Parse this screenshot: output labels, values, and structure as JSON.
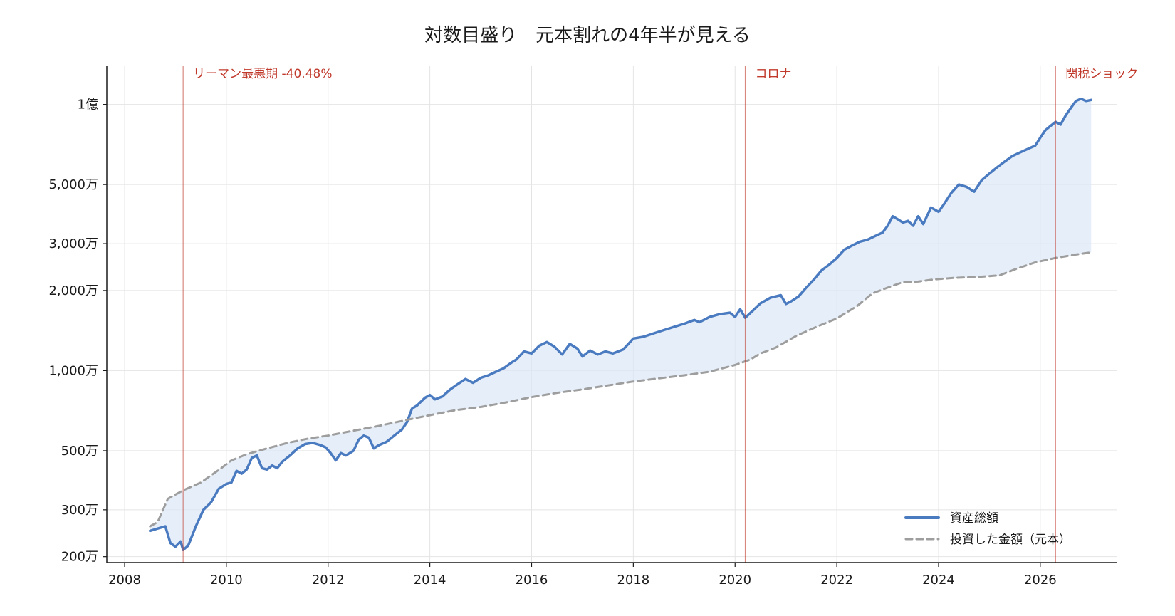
{
  "colors": {
    "asset": "#4a7abf",
    "invested": "#9e9e9e",
    "fill": "#dce8f6",
    "event": "#c0392b",
    "grid": "#e4e4e4",
    "axis": "#1a1a1a"
  },
  "chart_data": {
    "type": "line",
    "title": "対数目盛り　元本割れの4年半が見える",
    "xlabel": "",
    "ylabel": "",
    "y_scale": "log",
    "xlim": [
      2007.65,
      2027.5
    ],
    "ylim": [
      1900000,
      140000000
    ],
    "grid": true,
    "legend_position": "lower-right",
    "x_ticks": [
      {
        "value": 2008,
        "label": "2008"
      },
      {
        "value": 2010,
        "label": "2010"
      },
      {
        "value": 2012,
        "label": "2012"
      },
      {
        "value": 2014,
        "label": "2014"
      },
      {
        "value": 2016,
        "label": "2016"
      },
      {
        "value": 2018,
        "label": "2018"
      },
      {
        "value": 2020,
        "label": "2020"
      },
      {
        "value": 2022,
        "label": "2022"
      },
      {
        "value": 2024,
        "label": "2024"
      },
      {
        "value": 2026,
        "label": "2026"
      }
    ],
    "y_ticks": [
      {
        "value": 2000000,
        "label": "200万"
      },
      {
        "value": 3000000,
        "label": "300万"
      },
      {
        "value": 5000000,
        "label": "500万"
      },
      {
        "value": 10000000,
        "label": "1,000万"
      },
      {
        "value": 20000000,
        "label": "2,000万"
      },
      {
        "value": 30000000,
        "label": "3,000万"
      },
      {
        "value": 50000000,
        "label": "5,000万"
      },
      {
        "value": 100000000,
        "label": "1億"
      }
    ],
    "events": [
      {
        "x": 2009.15,
        "label": "リーマン最悪期 -40.48%"
      },
      {
        "x": 2020.2,
        "label": "コロナ"
      },
      {
        "x": 2026.3,
        "label": "関税ショック"
      }
    ],
    "series": [
      {
        "name": "資産総額",
        "style": "solid",
        "points": [
          [
            2008.5,
            2500000
          ],
          [
            2008.65,
            2550000
          ],
          [
            2008.8,
            2600000
          ],
          [
            2008.9,
            2250000
          ],
          [
            2009.0,
            2180000
          ],
          [
            2009.1,
            2280000
          ],
          [
            2009.15,
            2120000
          ],
          [
            2009.25,
            2200000
          ],
          [
            2009.4,
            2600000
          ],
          [
            2009.55,
            3000000
          ],
          [
            2009.7,
            3200000
          ],
          [
            2009.85,
            3600000
          ],
          [
            2010.0,
            3750000
          ],
          [
            2010.1,
            3800000
          ],
          [
            2010.2,
            4200000
          ],
          [
            2010.3,
            4100000
          ],
          [
            2010.4,
            4250000
          ],
          [
            2010.5,
            4700000
          ],
          [
            2010.6,
            4800000
          ],
          [
            2010.7,
            4300000
          ],
          [
            2010.8,
            4250000
          ],
          [
            2010.9,
            4400000
          ],
          [
            2011.0,
            4300000
          ],
          [
            2011.1,
            4550000
          ],
          [
            2011.25,
            4800000
          ],
          [
            2011.4,
            5100000
          ],
          [
            2011.55,
            5300000
          ],
          [
            2011.7,
            5350000
          ],
          [
            2011.85,
            5250000
          ],
          [
            2011.95,
            5150000
          ],
          [
            2012.05,
            4900000
          ],
          [
            2012.15,
            4600000
          ],
          [
            2012.25,
            4900000
          ],
          [
            2012.35,
            4800000
          ],
          [
            2012.5,
            5000000
          ],
          [
            2012.6,
            5500000
          ],
          [
            2012.7,
            5700000
          ],
          [
            2012.8,
            5600000
          ],
          [
            2012.9,
            5100000
          ],
          [
            2013.0,
            5250000
          ],
          [
            2013.15,
            5400000
          ],
          [
            2013.3,
            5700000
          ],
          [
            2013.45,
            6000000
          ],
          [
            2013.55,
            6400000
          ],
          [
            2013.65,
            7200000
          ],
          [
            2013.75,
            7400000
          ],
          [
            2013.9,
            7900000
          ],
          [
            2014.0,
            8100000
          ],
          [
            2014.1,
            7800000
          ],
          [
            2014.25,
            8000000
          ],
          [
            2014.4,
            8500000
          ],
          [
            2014.55,
            8900000
          ],
          [
            2014.7,
            9300000
          ],
          [
            2014.85,
            9000000
          ],
          [
            2015.0,
            9400000
          ],
          [
            2015.15,
            9600000
          ],
          [
            2015.3,
            9900000
          ],
          [
            2015.45,
            10200000
          ],
          [
            2015.6,
            10700000
          ],
          [
            2015.7,
            11000000
          ],
          [
            2015.85,
            11800000
          ],
          [
            2016.0,
            11600000
          ],
          [
            2016.15,
            12400000
          ],
          [
            2016.3,
            12800000
          ],
          [
            2016.45,
            12300000
          ],
          [
            2016.6,
            11500000
          ],
          [
            2016.75,
            12600000
          ],
          [
            2016.9,
            12100000
          ],
          [
            2017.0,
            11300000
          ],
          [
            2017.15,
            11900000
          ],
          [
            2017.3,
            11500000
          ],
          [
            2017.45,
            11800000
          ],
          [
            2017.6,
            11600000
          ],
          [
            2017.8,
            12000000
          ],
          [
            2018.0,
            13200000
          ],
          [
            2018.2,
            13400000
          ],
          [
            2018.4,
            13800000
          ],
          [
            2018.6,
            14200000
          ],
          [
            2018.8,
            14600000
          ],
          [
            2019.0,
            15000000
          ],
          [
            2019.2,
            15500000
          ],
          [
            2019.3,
            15200000
          ],
          [
            2019.5,
            15900000
          ],
          [
            2019.7,
            16300000
          ],
          [
            2019.9,
            16500000
          ],
          [
            2020.0,
            15900000
          ],
          [
            2020.1,
            17000000
          ],
          [
            2020.2,
            15800000
          ],
          [
            2020.35,
            16800000
          ],
          [
            2020.5,
            17900000
          ],
          [
            2020.7,
            18800000
          ],
          [
            2020.9,
            19200000
          ],
          [
            2021.0,
            17800000
          ],
          [
            2021.1,
            18200000
          ],
          [
            2021.25,
            19000000
          ],
          [
            2021.4,
            20500000
          ],
          [
            2021.55,
            22000000
          ],
          [
            2021.7,
            23800000
          ],
          [
            2021.85,
            25000000
          ],
          [
            2022.0,
            26500000
          ],
          [
            2022.15,
            28500000
          ],
          [
            2022.3,
            29500000
          ],
          [
            2022.45,
            30500000
          ],
          [
            2022.6,
            31000000
          ],
          [
            2022.75,
            32000000
          ],
          [
            2022.9,
            33000000
          ],
          [
            2023.0,
            35000000
          ],
          [
            2023.1,
            38000000
          ],
          [
            2023.2,
            37000000
          ],
          [
            2023.3,
            36000000
          ],
          [
            2023.4,
            36500000
          ],
          [
            2023.5,
            35000000
          ],
          [
            2023.6,
            38000000
          ],
          [
            2023.7,
            35500000
          ],
          [
            2023.85,
            41000000
          ],
          [
            2024.0,
            39500000
          ],
          [
            2024.1,
            42000000
          ],
          [
            2024.25,
            46500000
          ],
          [
            2024.4,
            50000000
          ],
          [
            2024.55,
            49000000
          ],
          [
            2024.7,
            47000000
          ],
          [
            2024.85,
            52000000
          ],
          [
            2025.0,
            55000000
          ],
          [
            2025.15,
            58000000
          ],
          [
            2025.3,
            61000000
          ],
          [
            2025.45,
            64000000
          ],
          [
            2025.6,
            66000000
          ],
          [
            2025.75,
            68000000
          ],
          [
            2025.9,
            70000000
          ],
          [
            2026.0,
            75000000
          ],
          [
            2026.1,
            80000000
          ],
          [
            2026.2,
            83000000
          ],
          [
            2026.3,
            86000000
          ],
          [
            2026.4,
            84000000
          ],
          [
            2026.5,
            91000000
          ],
          [
            2026.6,
            97000000
          ],
          [
            2026.7,
            103000000
          ],
          [
            2026.8,
            105000000
          ],
          [
            2026.9,
            103000000
          ],
          [
            2027.0,
            104000000
          ]
        ]
      },
      {
        "name": "投資した金額（元本）",
        "style": "dashed",
        "points": [
          [
            2008.5,
            2600000
          ],
          [
            2008.65,
            2700000
          ],
          [
            2008.85,
            3300000
          ],
          [
            2009.15,
            3550000
          ],
          [
            2009.5,
            3800000
          ],
          [
            2009.9,
            4300000
          ],
          [
            2010.1,
            4600000
          ],
          [
            2010.4,
            4850000
          ],
          [
            2010.8,
            5100000
          ],
          [
            2011.2,
            5350000
          ],
          [
            2011.6,
            5550000
          ],
          [
            2012.0,
            5700000
          ],
          [
            2012.5,
            5950000
          ],
          [
            2013.0,
            6200000
          ],
          [
            2013.5,
            6500000
          ],
          [
            2014.0,
            6800000
          ],
          [
            2014.5,
            7100000
          ],
          [
            2015.0,
            7300000
          ],
          [
            2015.5,
            7600000
          ],
          [
            2016.0,
            7950000
          ],
          [
            2016.5,
            8250000
          ],
          [
            2017.0,
            8500000
          ],
          [
            2017.5,
            8800000
          ],
          [
            2018.0,
            9100000
          ],
          [
            2018.5,
            9350000
          ],
          [
            2019.0,
            9600000
          ],
          [
            2019.5,
            9900000
          ],
          [
            2020.0,
            10500000
          ],
          [
            2020.3,
            11000000
          ],
          [
            2020.5,
            11600000
          ],
          [
            2020.8,
            12200000
          ],
          [
            2021.2,
            13500000
          ],
          [
            2021.6,
            14600000
          ],
          [
            2022.0,
            15700000
          ],
          [
            2022.4,
            17500000
          ],
          [
            2022.7,
            19500000
          ],
          [
            2023.0,
            20500000
          ],
          [
            2023.3,
            21500000
          ],
          [
            2023.6,
            21600000
          ],
          [
            2023.9,
            22000000
          ],
          [
            2024.3,
            22300000
          ],
          [
            2024.8,
            22500000
          ],
          [
            2025.2,
            22800000
          ],
          [
            2025.5,
            24000000
          ],
          [
            2025.9,
            25500000
          ],
          [
            2026.3,
            26500000
          ],
          [
            2026.7,
            27300000
          ],
          [
            2027.0,
            27800000
          ]
        ]
      }
    ]
  }
}
